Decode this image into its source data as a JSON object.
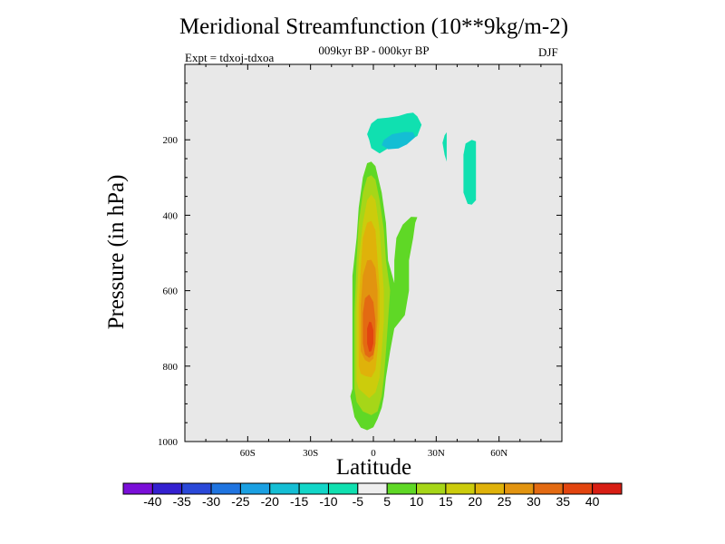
{
  "chart_data": {
    "type": "filled-contour",
    "title": "Meridional Streamfunction (10**9kg/m-2)",
    "subtitle": "009kyr BP - 000kyr BP",
    "experiment_label": "Expt = tdxoj-tdxoa",
    "season_label": "DJF",
    "xlabel": "Latitude",
    "ylabel": "Pressure (in hPa)",
    "xlim": [
      -90,
      90
    ],
    "ylim": [
      1000,
      0
    ],
    "x_ticks": [
      {
        "value": -60,
        "label": "60S"
      },
      {
        "value": -30,
        "label": "30S"
      },
      {
        "value": 0,
        "label": "0"
      },
      {
        "value": 30,
        "label": "30N"
      },
      {
        "value": 60,
        "label": "60N"
      }
    ],
    "y_ticks": [
      {
        "value": 200,
        "label": "200"
      },
      {
        "value": 400,
        "label": "400"
      },
      {
        "value": 600,
        "label": "600"
      },
      {
        "value": 800,
        "label": "800"
      },
      {
        "value": 1000,
        "label": "1000"
      }
    ],
    "background_color": "#e8e8e8",
    "colorbar": {
      "labels": [
        "-40",
        "-35",
        "-30",
        "-25",
        "-20",
        "-15",
        "-10",
        "-5",
        "5",
        "10",
        "15",
        "20",
        "25",
        "30",
        "35",
        "40"
      ],
      "colors": [
        "#7a0fd8",
        "#3420d0",
        "#2a48d8",
        "#1f74e0",
        "#1aa0e2",
        "#14bed4",
        "#12d6c8",
        "#10e0b0",
        "#eeeeee",
        "#5fd826",
        "#a6d618",
        "#cccc0c",
        "#dfb20a",
        "#e29410",
        "#e36a12",
        "#e2440f",
        "#d81e14"
      ]
    },
    "regions": [
      {
        "name": "negative-cell-upper",
        "level": "-10 to -5",
        "color": "#10e0b0",
        "points": [
          [
            -3,
            185
          ],
          [
            -1,
            157
          ],
          [
            2,
            144
          ],
          [
            7,
            141
          ],
          [
            12,
            137
          ],
          [
            16,
            130
          ],
          [
            19,
            128
          ],
          [
            21,
            138
          ],
          [
            23,
            160
          ],
          [
            21,
            190
          ],
          [
            16,
            205
          ],
          [
            10,
            213
          ],
          [
            6,
            226
          ],
          [
            3,
            236
          ],
          [
            -1,
            222
          ],
          [
            -2,
            200
          ]
        ]
      },
      {
        "name": "negative-cell-core",
        "level": "-15 to -10",
        "color": "#14bed4",
        "points": [
          [
            5,
            200
          ],
          [
            9,
            185
          ],
          [
            15,
            179
          ],
          [
            19,
            180
          ],
          [
            20,
            193
          ],
          [
            16,
            212
          ],
          [
            12,
            223
          ],
          [
            7,
            225
          ],
          [
            4,
            214
          ]
        ]
      },
      {
        "name": "negative-band-30N",
        "level": "-10 to -5",
        "color": "#10e0b0",
        "points": [
          [
            33,
            208
          ],
          [
            34,
            188
          ],
          [
            35,
            180
          ],
          [
            35,
            200
          ],
          [
            35,
            252
          ],
          [
            35,
            258
          ],
          [
            34,
            240
          ]
        ]
      },
      {
        "name": "negative-band-45N",
        "level": "-10 to -5",
        "color": "#10e0b0",
        "points": [
          [
            43,
            240
          ],
          [
            44,
            210
          ],
          [
            47,
            200
          ],
          [
            49,
            204
          ],
          [
            49,
            240
          ],
          [
            49,
            360
          ],
          [
            47,
            372
          ],
          [
            45,
            370
          ],
          [
            43,
            340
          ]
        ]
      },
      {
        "name": "positive-cell-level-5",
        "level": "5 to 10",
        "color": "#5fd826",
        "points": [
          [
            -11,
            880
          ],
          [
            -10,
            860
          ],
          [
            -10,
            660
          ],
          [
            -10,
            560
          ],
          [
            -8,
            460
          ],
          [
            -7,
            380
          ],
          [
            -5,
            300
          ],
          [
            -3,
            262
          ],
          [
            -1,
            258
          ],
          [
            1,
            270
          ],
          [
            4,
            340
          ],
          [
            6,
            420
          ],
          [
            7,
            520
          ],
          [
            10,
            580
          ],
          [
            10,
            520
          ],
          [
            11,
            460
          ],
          [
            14,
            425
          ],
          [
            18,
            404
          ],
          [
            21,
            405
          ],
          [
            20,
            420
          ],
          [
            19,
            460
          ],
          [
            17,
            520
          ],
          [
            17,
            600
          ],
          [
            15,
            665
          ],
          [
            10,
            700
          ],
          [
            8,
            760
          ],
          [
            6,
            830
          ],
          [
            5,
            880
          ],
          [
            4,
            910
          ],
          [
            2,
            940
          ],
          [
            0,
            962
          ],
          [
            -3,
            970
          ],
          [
            -6,
            963
          ],
          [
            -9,
            935
          ]
        ]
      },
      {
        "name": "positive-cell-level-10",
        "level": "10 to 15",
        "color": "#a6d618",
        "points": [
          [
            -9,
            860
          ],
          [
            -9,
            660
          ],
          [
            -8,
            520
          ],
          [
            -7,
            420
          ],
          [
            -5,
            340
          ],
          [
            -3,
            300
          ],
          [
            -1,
            294
          ],
          [
            1,
            306
          ],
          [
            3,
            360
          ],
          [
            5,
            440
          ],
          [
            6,
            520
          ],
          [
            8,
            600
          ],
          [
            7,
            680
          ],
          [
            6,
            760
          ],
          [
            5,
            830
          ],
          [
            4,
            880
          ],
          [
            2,
            920
          ],
          [
            -1,
            930
          ],
          [
            -5,
            920
          ],
          [
            -8,
            895
          ]
        ]
      },
      {
        "name": "positive-cell-level-15",
        "level": "15 to 20",
        "color": "#cccc0c",
        "points": [
          [
            -8,
            840
          ],
          [
            -8,
            640
          ],
          [
            -7,
            520
          ],
          [
            -5,
            420
          ],
          [
            -3,
            360
          ],
          [
            -1,
            345
          ],
          [
            1,
            360
          ],
          [
            3,
            440
          ],
          [
            4,
            520
          ],
          [
            5,
            600
          ],
          [
            5,
            680
          ],
          [
            4,
            760
          ],
          [
            3,
            830
          ],
          [
            1,
            870
          ],
          [
            -2,
            885
          ],
          [
            -5,
            870
          ],
          [
            -7,
            860
          ]
        ]
      },
      {
        "name": "positive-cell-level-20",
        "level": "20 to 25",
        "color": "#dfb20a",
        "points": [
          [
            -7,
            800
          ],
          [
            -7,
            640
          ],
          [
            -6,
            540
          ],
          [
            -5,
            460
          ],
          [
            -3,
            420
          ],
          [
            -1,
            415
          ],
          [
            1,
            440
          ],
          [
            2,
            520
          ],
          [
            3,
            600
          ],
          [
            3,
            680
          ],
          [
            2,
            760
          ],
          [
            1,
            810
          ],
          [
            -1,
            830
          ],
          [
            -4,
            826
          ],
          [
            -6,
            820
          ]
        ]
      },
      {
        "name": "positive-cell-level-25",
        "level": "25 to 30",
        "color": "#e29410",
        "points": [
          [
            -6,
            760
          ],
          [
            -6,
            640
          ],
          [
            -5,
            560
          ],
          [
            -3,
            520
          ],
          [
            -1,
            518
          ],
          [
            1,
            540
          ],
          [
            2,
            600
          ],
          [
            2,
            680
          ],
          [
            1,
            740
          ],
          [
            0,
            780
          ],
          [
            -2,
            790
          ],
          [
            -4,
            784
          ]
        ]
      },
      {
        "name": "positive-cell-level-30",
        "level": "30 to 35",
        "color": "#e36a12",
        "points": [
          [
            -5,
            740
          ],
          [
            -5,
            660
          ],
          [
            -4,
            620
          ],
          [
            -2,
            610
          ],
          [
            0,
            630
          ],
          [
            1,
            680
          ],
          [
            1,
            740
          ],
          [
            0,
            770
          ],
          [
            -2,
            778
          ],
          [
            -4,
            770
          ]
        ]
      },
      {
        "name": "positive-cell-level-35",
        "level": "35 to 40",
        "color": "#e2440f",
        "points": [
          [
            -3,
            740
          ],
          [
            -3,
            700
          ],
          [
            -2,
            682
          ],
          [
            -1,
            684
          ],
          [
            0,
            705
          ],
          [
            0,
            740
          ],
          [
            -1,
            760
          ],
          [
            -2,
            762
          ]
        ]
      }
    ]
  }
}
